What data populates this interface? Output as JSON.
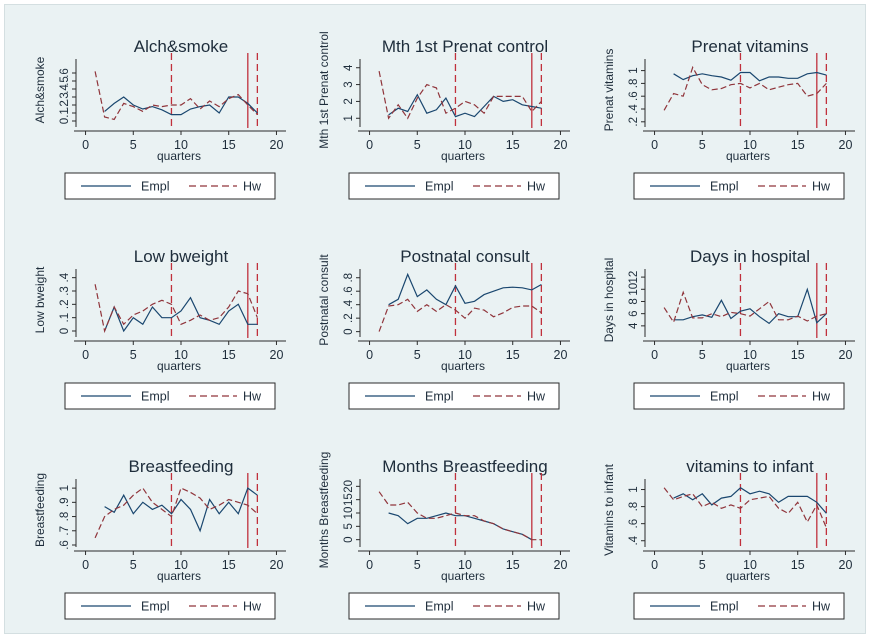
{
  "chart_data": [
    {
      "type": "line",
      "title": "Alch&smoke",
      "ylabel": "Alch&smoke",
      "xlabel": "quarters",
      "xticks": [
        0,
        5,
        10,
        15,
        20
      ],
      "yticks": [
        "0",
        ".1",
        ".2",
        ".3",
        ".4",
        ".5",
        ".6"
      ],
      "ylim": [
        -0.05,
        0.75
      ],
      "series": [
        {
          "name": "Empl",
          "x": [
            2,
            3,
            4,
            5,
            6,
            7,
            8,
            9,
            10,
            11,
            12,
            13,
            14,
            15,
            16,
            17,
            18
          ],
          "y": [
            0.12,
            0.22,
            0.3,
            0.2,
            0.15,
            0.18,
            0.14,
            0.08,
            0.08,
            0.15,
            0.18,
            0.2,
            0.1,
            0.3,
            0.3,
            0.22,
            0.1
          ]
        },
        {
          "name": "Hw",
          "x": [
            1,
            2,
            3,
            4,
            5,
            6,
            7,
            8,
            9,
            10,
            11,
            12,
            13,
            14,
            15,
            16,
            17,
            18
          ],
          "y": [
            0.62,
            0.05,
            0.02,
            0.22,
            0.18,
            0.12,
            0.2,
            0.18,
            0.2,
            0.2,
            0.28,
            0.15,
            0.25,
            0.18,
            0.28,
            0.33,
            0.2,
            0.08
          ]
        }
      ],
      "vlines": [
        {
          "x": 9,
          "style": "dashed"
        },
        {
          "x": 17,
          "style": "solid"
        },
        {
          "x": 18,
          "style": "dashed"
        }
      ]
    },
    {
      "type": "line",
      "title": "Mth 1st Prenat control",
      "ylabel": "Mth 1st Prenat control",
      "xlabel": "quarters",
      "xticks": [
        0,
        5,
        10,
        15,
        20
      ],
      "yticks": [
        "1",
        "2",
        "3",
        "4"
      ],
      "ylim": [
        0.6,
        4.4
      ],
      "series": [
        {
          "name": "Empl",
          "x": [
            2,
            3,
            4,
            5,
            6,
            7,
            8,
            9,
            10,
            11,
            12,
            13,
            14,
            15,
            16,
            17,
            18
          ],
          "y": [
            1.2,
            1.6,
            1.4,
            2.4,
            1.3,
            1.5,
            2.2,
            1.1,
            1.3,
            1.1,
            1.7,
            2.3,
            2.0,
            2.1,
            1.8,
            1.7,
            1.6
          ]
        },
        {
          "name": "Hw",
          "x": [
            1,
            2,
            3,
            4,
            5,
            6,
            7,
            8,
            9,
            10,
            11,
            12,
            13,
            14,
            15,
            16,
            17,
            18
          ],
          "y": [
            3.8,
            1.0,
            1.8,
            1.0,
            2.2,
            3.0,
            2.8,
            1.3,
            1.6,
            2.0,
            1.8,
            1.3,
            2.3,
            2.3,
            2.3,
            2.3,
            1.4,
            2.0
          ]
        }
      ],
      "vlines": [
        {
          "x": 9,
          "style": "dashed"
        },
        {
          "x": 17,
          "style": "solid"
        },
        {
          "x": 18,
          "style": "dashed"
        }
      ]
    },
    {
      "type": "line",
      "title": "Prenat vitamins",
      "ylabel": "Prenat vitamins",
      "xlabel": "quarters",
      "xticks": [
        0,
        5,
        10,
        15,
        20
      ],
      "yticks": [
        ".2",
        ".4",
        ".6",
        ".8",
        "1"
      ],
      "ylim": [
        0.15,
        1.15
      ],
      "series": [
        {
          "name": "Empl",
          "x": [
            2,
            3,
            4,
            5,
            6,
            7,
            8,
            9,
            10,
            11,
            12,
            13,
            14,
            15,
            16,
            17,
            18
          ],
          "y": [
            0.95,
            0.86,
            0.92,
            0.95,
            0.92,
            0.9,
            0.85,
            0.97,
            0.97,
            0.84,
            0.9,
            0.9,
            0.88,
            0.88,
            0.95,
            0.97,
            0.93
          ]
        },
        {
          "name": "Hw",
          "x": [
            1,
            2,
            3,
            4,
            5,
            6,
            7,
            8,
            9,
            10,
            11,
            12,
            13,
            14,
            15,
            16,
            17,
            18
          ],
          "y": [
            0.38,
            0.64,
            0.6,
            1.05,
            0.78,
            0.7,
            0.72,
            0.78,
            0.8,
            0.73,
            0.8,
            0.7,
            0.74,
            0.78,
            0.8,
            0.6,
            0.64,
            0.8
          ]
        }
      ],
      "vlines": [
        {
          "x": 9,
          "style": "dashed"
        },
        {
          "x": 17,
          "style": "solid"
        },
        {
          "x": 18,
          "style": "dashed"
        }
      ]
    },
    {
      "type": "line",
      "title": "Low bweight",
      "ylabel": "Low bweight",
      "xlabel": "quarters",
      "xticks": [
        0,
        5,
        10,
        15,
        20
      ],
      "yticks": [
        "0",
        ".1",
        ".2",
        ".3",
        ".4"
      ],
      "ylim": [
        -0.03,
        0.45
      ],
      "series": [
        {
          "name": "Empl",
          "x": [
            2,
            3,
            4,
            5,
            6,
            7,
            8,
            9,
            10,
            11,
            12,
            13,
            14,
            15,
            16,
            17,
            18
          ],
          "y": [
            0.0,
            0.18,
            0.0,
            0.1,
            0.05,
            0.18,
            0.1,
            0.1,
            0.15,
            0.25,
            0.1,
            0.08,
            0.05,
            0.15,
            0.2,
            0.05,
            0.05
          ]
        },
        {
          "name": "Hw",
          "x": [
            1,
            2,
            3,
            4,
            5,
            6,
            7,
            8,
            9,
            10,
            11,
            12,
            13,
            14,
            15,
            16,
            17,
            18
          ],
          "y": [
            0.35,
            0.0,
            0.18,
            0.05,
            0.12,
            0.15,
            0.2,
            0.23,
            0.2,
            0.05,
            0.08,
            0.12,
            0.08,
            0.1,
            0.18,
            0.3,
            0.28,
            0.1
          ]
        }
      ],
      "vlines": [
        {
          "x": 9,
          "style": "dashed"
        },
        {
          "x": 17,
          "style": "solid"
        },
        {
          "x": 18,
          "style": "dashed"
        }
      ]
    },
    {
      "type": "line",
      "title": "Postnatal consult",
      "ylabel": "Postnatal consult",
      "xlabel": "quarters",
      "xticks": [
        0,
        5,
        10,
        15,
        20
      ],
      "yticks": [
        "0",
        ".2",
        ".4",
        ".6",
        ".8"
      ],
      "ylim": [
        -0.05,
        0.9
      ],
      "series": [
        {
          "name": "Empl",
          "x": [
            2,
            3,
            4,
            5,
            6,
            7,
            8,
            9,
            10,
            11,
            12,
            13,
            14,
            15,
            16,
            17,
            18
          ],
          "y": [
            0.4,
            0.48,
            0.85,
            0.52,
            0.62,
            0.48,
            0.4,
            0.68,
            0.42,
            0.45,
            0.55,
            0.6,
            0.65,
            0.66,
            0.65,
            0.62,
            0.7
          ]
        },
        {
          "name": "Hw",
          "x": [
            1,
            2,
            3,
            4,
            5,
            6,
            7,
            8,
            9,
            10,
            11,
            12,
            13,
            14,
            15,
            16,
            17,
            18
          ],
          "y": [
            0.0,
            0.38,
            0.4,
            0.48,
            0.3,
            0.4,
            0.3,
            0.4,
            0.32,
            0.2,
            0.35,
            0.32,
            0.22,
            0.28,
            0.36,
            0.38,
            0.38,
            0.28
          ]
        }
      ],
      "vlines": [
        {
          "x": 9,
          "style": "dashed"
        },
        {
          "x": 17,
          "style": "solid"
        },
        {
          "x": 18,
          "style": "dashed"
        }
      ]
    },
    {
      "type": "line",
      "title": "Days in hospital",
      "ylabel": "Days in hospital",
      "xlabel": "quarters",
      "xticks": [
        0,
        5,
        10,
        15,
        20
      ],
      "yticks": [
        "4",
        "6",
        "8",
        "10",
        "12"
      ],
      "ylim": [
        2.5,
        13
      ],
      "series": [
        {
          "name": "Empl",
          "x": [
            2,
            3,
            4,
            5,
            6,
            7,
            8,
            9,
            10,
            11,
            12,
            13,
            14,
            15,
            16,
            17,
            18
          ],
          "y": [
            5.0,
            5.0,
            5.5,
            5.8,
            5.4,
            8.2,
            5.2,
            6.4,
            6.8,
            5.5,
            4.4,
            6.0,
            5.5,
            5.5,
            10.0,
            4.5,
            6.0
          ]
        },
        {
          "name": "Hw",
          "x": [
            1,
            2,
            3,
            4,
            5,
            6,
            7,
            8,
            9,
            10,
            11,
            12,
            13,
            14,
            15,
            16,
            17,
            18
          ],
          "y": [
            7.0,
            4.6,
            9.5,
            5.3,
            5.3,
            6.0,
            5.5,
            6.2,
            6.0,
            5.6,
            6.8,
            8.0,
            5.0,
            5.0,
            5.6,
            4.8,
            5.6,
            6.0
          ]
        }
      ],
      "vlines": [
        {
          "x": 9,
          "style": "dashed"
        },
        {
          "x": 17,
          "style": "solid"
        },
        {
          "x": 18,
          "style": "dashed"
        }
      ]
    },
    {
      "type": "line",
      "title": "Breastfeeding",
      "ylabel": "Breastfeeding",
      "xlabel": "quarters",
      "xticks": [
        0,
        5,
        10,
        15,
        20
      ],
      "yticks": [
        ".6",
        ".7",
        ".8",
        ".9",
        "1"
      ],
      "ylim": [
        0.6,
        1.05
      ],
      "series": [
        {
          "name": "Empl",
          "x": [
            2,
            3,
            4,
            5,
            6,
            7,
            8,
            9,
            10,
            11,
            12,
            13,
            14,
            15,
            16,
            17,
            18
          ],
          "y": [
            0.87,
            0.83,
            0.95,
            0.82,
            0.9,
            0.85,
            0.88,
            0.82,
            0.92,
            0.85,
            0.7,
            0.92,
            0.82,
            0.9,
            0.82,
            1.0,
            0.95
          ]
        },
        {
          "name": "Hw",
          "x": [
            1,
            2,
            3,
            4,
            5,
            6,
            7,
            8,
            9,
            10,
            11,
            12,
            13,
            14,
            15,
            16,
            17,
            18
          ],
          "y": [
            0.65,
            0.8,
            0.85,
            0.88,
            0.95,
            1.0,
            0.9,
            0.85,
            0.8,
            1.0,
            0.97,
            0.93,
            0.85,
            0.88,
            0.92,
            0.9,
            0.88,
            0.82
          ]
        }
      ],
      "vlines": [
        {
          "x": 9,
          "style": "dashed"
        },
        {
          "x": 17,
          "style": "solid"
        },
        {
          "x": 18,
          "style": "dashed"
        }
      ]
    },
    {
      "type": "line",
      "title": "Months Breastfeeding",
      "ylabel": "Months Breastfeeding",
      "xlabel": "quarters",
      "xticks": [
        0,
        5,
        10,
        15,
        20
      ],
      "yticks": [
        "0",
        "5",
        "10",
        "15",
        "20"
      ],
      "ylim": [
        -2,
        22
      ],
      "series": [
        {
          "name": "Empl",
          "x": [
            2,
            3,
            4,
            5,
            6,
            7,
            8,
            9,
            10,
            11,
            12,
            13,
            14,
            15,
            16,
            17,
            18
          ],
          "y": [
            10,
            9,
            6,
            8,
            8,
            9,
            10,
            9,
            9,
            8,
            7,
            6,
            4,
            3,
            2,
            0,
            null
          ]
        },
        {
          "name": "Hw",
          "x": [
            1,
            2,
            3,
            4,
            5,
            6,
            7,
            8,
            9,
            10,
            11,
            12,
            13,
            14,
            15,
            16,
            17,
            18
          ],
          "y": [
            18,
            13,
            13,
            14,
            10,
            8,
            8,
            9,
            10,
            9,
            9,
            7,
            6,
            4,
            3,
            2,
            0,
            0
          ]
        }
      ],
      "vlines": [
        {
          "x": 9,
          "style": "dashed"
        },
        {
          "x": 17,
          "style": "solid"
        },
        {
          "x": 18,
          "style": "dashed"
        }
      ]
    },
    {
      "type": "line",
      "title": "vitamins to infant",
      "ylabel": "Vitamins to infant",
      "xlabel": "quarters",
      "xticks": [
        0,
        5,
        10,
        15,
        20
      ],
      "yticks": [
        ".4",
        ".6",
        ".8",
        "1"
      ],
      "ylim": [
        0.35,
        1.1
      ],
      "series": [
        {
          "name": "Empl",
          "x": [
            2,
            3,
            4,
            5,
            6,
            7,
            8,
            9,
            10,
            11,
            12,
            13,
            14,
            15,
            16,
            17,
            18
          ],
          "y": [
            0.9,
            0.95,
            0.88,
            0.95,
            0.82,
            0.9,
            0.92,
            1.02,
            0.95,
            0.98,
            0.95,
            0.85,
            0.92,
            0.92,
            0.92,
            0.85,
            0.72
          ]
        },
        {
          "name": "Hw",
          "x": [
            1,
            2,
            3,
            4,
            5,
            6,
            7,
            8,
            9,
            10,
            11,
            12,
            13,
            14,
            15,
            16,
            17,
            18
          ],
          "y": [
            1.02,
            0.88,
            0.92,
            0.95,
            0.8,
            0.85,
            0.78,
            0.82,
            0.78,
            0.88,
            0.9,
            0.92,
            0.78,
            0.72,
            0.85,
            0.62,
            0.82,
            0.55
          ]
        }
      ],
      "vlines": [
        {
          "x": 9,
          "style": "dashed"
        },
        {
          "x": 17,
          "style": "solid"
        },
        {
          "x": 18,
          "style": "dashed"
        }
      ]
    }
  ],
  "colors": {
    "empl": "#1a476f",
    "hw": "#90353b",
    "vline": "#c0303c",
    "background": "#eaf2f3"
  }
}
